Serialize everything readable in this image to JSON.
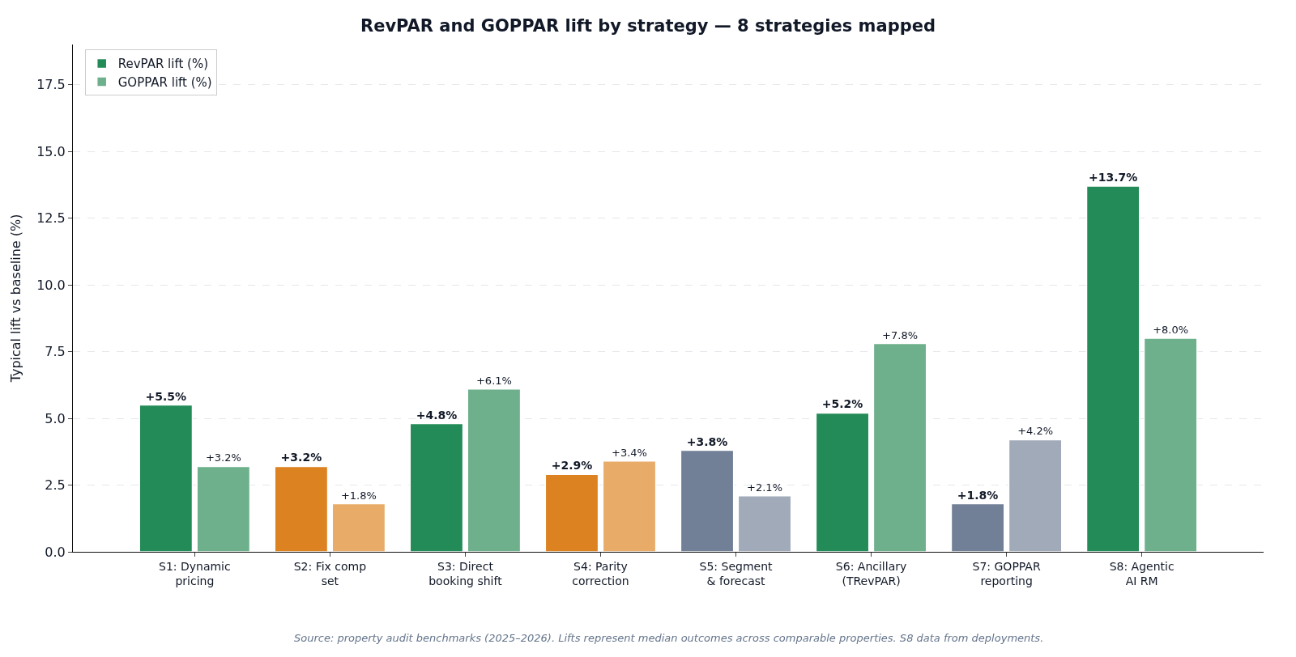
{
  "chart_data": {
    "type": "bar",
    "title": "RevPAR and GOPPAR lift by strategy — 8 strategies mapped",
    "ylabel": "Typical lift vs baseline (%)",
    "categories": [
      "S1: Dynamic\npricing",
      "S2: Fix comp\nset",
      "S3: Direct\nbooking shift",
      "S4: Parity\ncorrection",
      "S5: Segment\n& forecast",
      "S6: Ancillary\n(TRevPAR)",
      "S7: GOPPAR\nreporting",
      "S8: Agentic\nAI RM"
    ],
    "series": [
      {
        "name": "RevPAR lift (%)",
        "colors": [
          "#238b57",
          "#dc8221",
          "#238b57",
          "#dc8221",
          "#718096",
          "#238b57",
          "#718096",
          "#238b57"
        ],
        "values": [
          5.5,
          3.2,
          4.8,
          2.9,
          3.8,
          5.2,
          1.8,
          13.7
        ],
        "value_labels": [
          "+5.5%",
          "+3.2%",
          "+4.8%",
          "+2.9%",
          "+3.8%",
          "+5.2%",
          "+1.8%",
          "+13.7%"
        ]
      },
      {
        "name": "GOPPAR lift (%)",
        "colors": [
          "#6db08b",
          "#e8ac68",
          "#6db08b",
          "#e8ac68",
          "#a0aab8",
          "#6db08b",
          "#a0aab8",
          "#6db08b"
        ],
        "values": [
          3.2,
          1.8,
          6.1,
          3.4,
          2.1,
          7.8,
          4.2,
          8.0
        ],
        "value_labels": [
          "+3.2%",
          "+1.8%",
          "+6.1%",
          "+3.4%",
          "+2.1%",
          "+7.8%",
          "+4.2%",
          "+8.0%"
        ]
      }
    ],
    "ylim": [
      0,
      19
    ],
    "yticks": [
      {
        "value": 0,
        "label": "0.0"
      },
      {
        "value": 2.5,
        "label": "2.5"
      },
      {
        "value": 5,
        "label": "5.0"
      },
      {
        "value": 7.5,
        "label": "7.5"
      },
      {
        "value": 10,
        "label": "10.0"
      },
      {
        "value": 12.5,
        "label": "12.5"
      },
      {
        "value": 15,
        "label": "15.0"
      },
      {
        "value": 17.5,
        "label": "17.5"
      }
    ],
    "grid": "y",
    "legend": "top left",
    "annotations": [
      "Source: property audit benchmarks (2025–2026). Lifts represent median outcomes across comparable properties. S8 data from deployments."
    ]
  }
}
